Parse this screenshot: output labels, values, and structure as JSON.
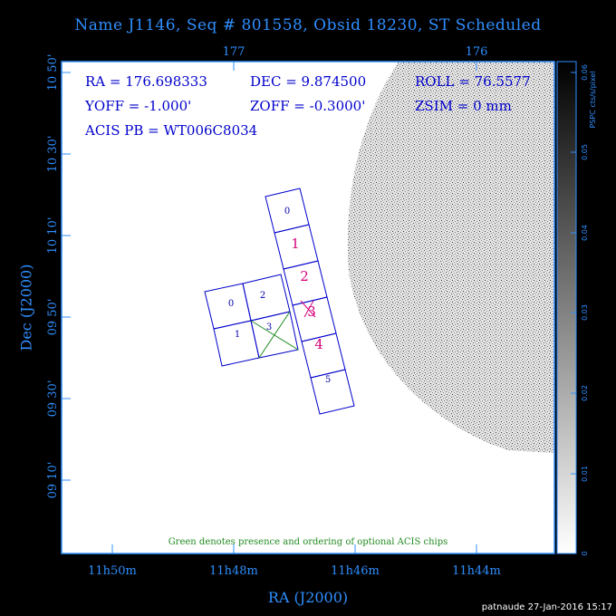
{
  "header": {
    "title": "Name J1146, Seq # 801558, Obsid 18230, ST Scheduled"
  },
  "info": {
    "ra": "RA = 176.698333",
    "dec": "DEC = 9.874500",
    "roll": "ROLL = 76.5577",
    "yoff": "YOFF = -1.000'",
    "zoff": "ZOFF = -0.3000'",
    "zsim": "ZSIM = 0 mm",
    "acis_pb": "ACIS PB = WT006C8034"
  },
  "axes": {
    "xlabel": "RA (J2000)",
    "ylabel": "Dec (J2000)",
    "x_ticks": [
      "11h50m",
      "11h48m",
      "11h46m",
      "11h44m"
    ],
    "top_ticks": [
      "177",
      "176"
    ],
    "y_ticks": [
      "10 50'",
      "10 30'",
      "10 10'",
      "09 50'",
      "09 30'",
      "09 10'"
    ]
  },
  "colorbar": {
    "label": "PSPC cts/s/pixel",
    "ticks": [
      "0",
      "0.01",
      "0.02",
      "0.03",
      "0.04",
      "0.05",
      "0.06"
    ]
  },
  "chips": {
    "i_array": [
      "0",
      "2",
      "1",
      "3"
    ],
    "s_array": [
      "0",
      "1",
      "2",
      "3",
      "4",
      "5"
    ]
  },
  "note": "Green denotes presence and ordering of optional ACIS chips",
  "footer": {
    "stamp": "patnaude 27-Jan-2016 15:17"
  },
  "colors": {
    "axis_blue": "#2f8fff",
    "text_blue": "#0000cc",
    "magenta": "#d4007a",
    "green": "#228b22"
  }
}
